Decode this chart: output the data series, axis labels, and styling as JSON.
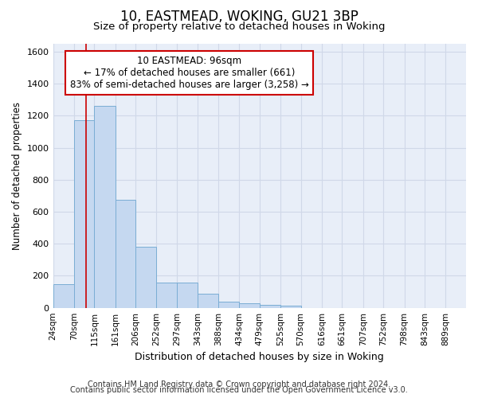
{
  "title1": "10, EASTMEAD, WOKING, GU21 3BP",
  "title2": "Size of property relative to detached houses in Woking",
  "xlabel": "Distribution of detached houses by size in Woking",
  "ylabel": "Number of detached properties",
  "bar_edges": [
    24,
    70,
    115,
    161,
    206,
    252,
    297,
    343,
    388,
    434,
    479,
    525,
    570,
    616,
    661,
    707,
    752,
    798,
    843,
    889,
    934
  ],
  "bar_values": [
    147,
    1170,
    1262,
    675,
    380,
    160,
    160,
    90,
    38,
    30,
    20,
    13,
    0,
    0,
    0,
    0,
    0,
    0,
    0,
    0,
    0
  ],
  "bar_color": "#c5d8f0",
  "bar_edgecolor": "#7aadd4",
  "bar_linewidth": 0.7,
  "vline_x": 96,
  "vline_color": "#cc0000",
  "vline_linewidth": 1.2,
  "annotation_text": "10 EASTMEAD: 96sqm\n← 17% of detached houses are smaller (661)\n83% of semi-detached houses are larger (3,258) →",
  "annotation_fontsize": 8.5,
  "annotation_box_color": "#ffffff",
  "annotation_border_color": "#cc0000",
  "ylim": [
    0,
    1650
  ],
  "yticks": [
    0,
    200,
    400,
    600,
    800,
    1000,
    1200,
    1400,
    1600
  ],
  "bg_color": "#e8eef8",
  "grid_color": "#d0d8e8",
  "footer1": "Contains HM Land Registry data © Crown copyright and database right 2024.",
  "footer2": "Contains public sector information licensed under the Open Government Licence v3.0.",
  "footer_fontsize": 7,
  "title1_fontsize": 12,
  "title2_fontsize": 9.5,
  "xlabel_fontsize": 9,
  "ylabel_fontsize": 8.5,
  "tick_fontsize": 7.5
}
